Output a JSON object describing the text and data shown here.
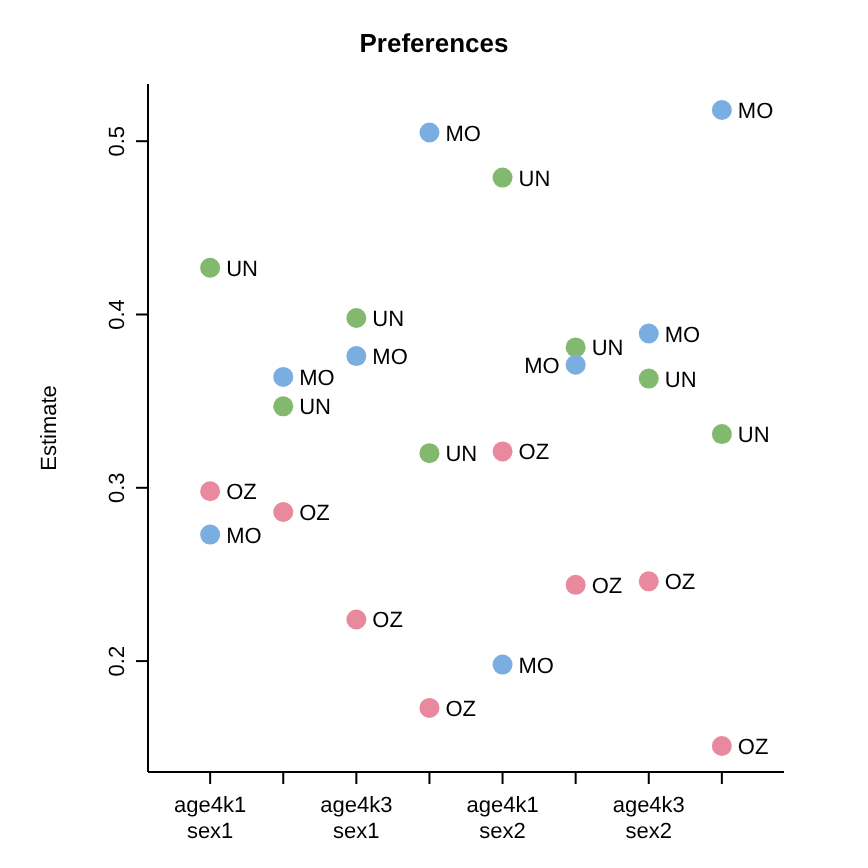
{
  "chart_data": {
    "type": "scatter",
    "title": "Preferences",
    "ylabel": "Estimate",
    "categories": [
      "age4k1\nsex1",
      null,
      "age4k3\nsex1",
      null,
      "age4k1\nsex2",
      null,
      "age4k3\nsex2",
      null
    ],
    "series": [
      {
        "name": "UN",
        "color": "#82b96f",
        "values": [
          0.427,
          0.347,
          0.398,
          0.32,
          0.479,
          0.381,
          0.363,
          0.331
        ]
      },
      {
        "name": "MO",
        "color": "#7aaee0",
        "values": [
          0.273,
          0.364,
          0.376,
          0.505,
          0.198,
          0.371,
          0.389,
          0.518
        ]
      },
      {
        "name": "OZ",
        "color": "#e8899e",
        "values": [
          0.298,
          0.286,
          0.224,
          0.173,
          0.321,
          0.244,
          0.246,
          0.151
        ]
      }
    ],
    "ylim": [
      0.136,
      0.533
    ],
    "yticks": [
      0.2,
      0.3,
      0.4,
      0.5
    ],
    "marker": "circle"
  }
}
